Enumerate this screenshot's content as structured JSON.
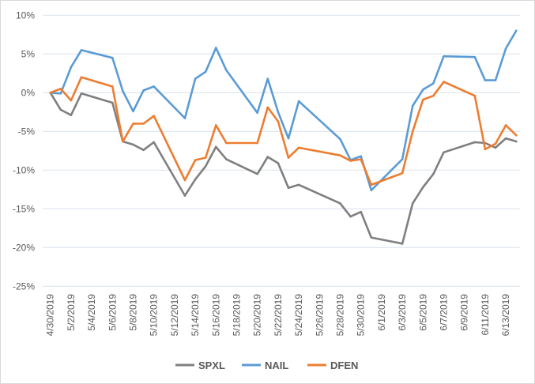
{
  "chart_data": {
    "type": "line",
    "title": "",
    "xlabel": "",
    "ylabel": "",
    "ylim": [
      -25,
      10
    ],
    "yticks": [
      10,
      5,
      0,
      -5,
      -10,
      -15,
      -20,
      -25
    ],
    "ytick_labels": [
      "10%",
      "5%",
      "0%",
      "-5%",
      "-10%",
      "-15%",
      "-20%",
      "-25%"
    ],
    "grid": true,
    "legend_position": "bottom",
    "x_start": "4/30/2019",
    "xtick_labels": [
      "4/30/2019",
      "5/2/2019",
      "5/4/2019",
      "5/6/2019",
      "5/8/2019",
      "5/10/2019",
      "5/12/2019",
      "5/14/2019",
      "5/16/2019",
      "5/18/2019",
      "5/20/2019",
      "5/22/2019",
      "5/24/2019",
      "5/26/2019",
      "5/28/2019",
      "5/30/2019",
      "6/1/2019",
      "6/3/2019",
      "6/5/2019",
      "6/7/2019",
      "6/9/2019",
      "6/11/2019",
      "6/13/2019"
    ],
    "x": [
      "4/30",
      "5/1",
      "5/2",
      "5/3",
      "5/6",
      "5/7",
      "5/8",
      "5/9",
      "5/10",
      "5/13",
      "5/14",
      "5/15",
      "5/16",
      "5/17",
      "5/20",
      "5/21",
      "5/22",
      "5/23",
      "5/24",
      "5/28",
      "5/29",
      "5/30",
      "5/31",
      "6/3",
      "6/4",
      "6/5",
      "6/6",
      "6/7",
      "6/10",
      "6/11",
      "6/12",
      "6/13",
      "6/14"
    ],
    "x_day_offsets": [
      0,
      1,
      2,
      3,
      6,
      7,
      8,
      9,
      10,
      13,
      14,
      15,
      16,
      17,
      20,
      21,
      22,
      23,
      24,
      28,
      29,
      30,
      31,
      34,
      35,
      36,
      37,
      38,
      41,
      42,
      43,
      44,
      45
    ],
    "series": [
      {
        "name": "SPXL",
        "color": "#7f7f7f",
        "values": [
          0,
          -2.2,
          -2.9,
          -0.1,
          -1.3,
          -6.3,
          -6.7,
          -7.4,
          -6.4,
          -13.3,
          -11.2,
          -9.5,
          -7.0,
          -8.6,
          -10.5,
          -8.3,
          -9.1,
          -12.3,
          -11.9,
          -14.3,
          -16.0,
          -15.4,
          -18.7,
          -19.5,
          -14.3,
          -12.2,
          -10.5,
          -7.7,
          -6.4,
          -6.5,
          -7.1,
          -5.9,
          -6.3
        ]
      },
      {
        "name": "NAIL",
        "color": "#5b9bd5",
        "values": [
          0,
          -0.1,
          3.3,
          5.5,
          4.5,
          0.2,
          -2.4,
          0.3,
          0.8,
          -3.3,
          1.8,
          2.7,
          5.8,
          2.9,
          -2.6,
          1.8,
          -2.5,
          -5.9,
          -1.1,
          -6.0,
          -8.7,
          -8.2,
          -12.6,
          -8.6,
          -1.7,
          0.4,
          1.2,
          4.7,
          4.6,
          1.6,
          1.6,
          5.7,
          8.0
        ]
      },
      {
        "name": "DFEN",
        "color": "#ed7d31",
        "values": [
          0,
          0.5,
          -1.0,
          2.0,
          0.8,
          -6.3,
          -4.0,
          -4.0,
          -3.0,
          -11.3,
          -8.7,
          -8.4,
          -4.2,
          -6.5,
          -6.5,
          -1.9,
          -3.7,
          -8.4,
          -7.1,
          -8.1,
          -8.8,
          -8.6,
          -11.9,
          -10.4,
          -5.0,
          -0.9,
          -0.4,
          1.4,
          -0.4,
          -7.3,
          -6.6,
          -4.2,
          -5.5
        ]
      }
    ]
  }
}
